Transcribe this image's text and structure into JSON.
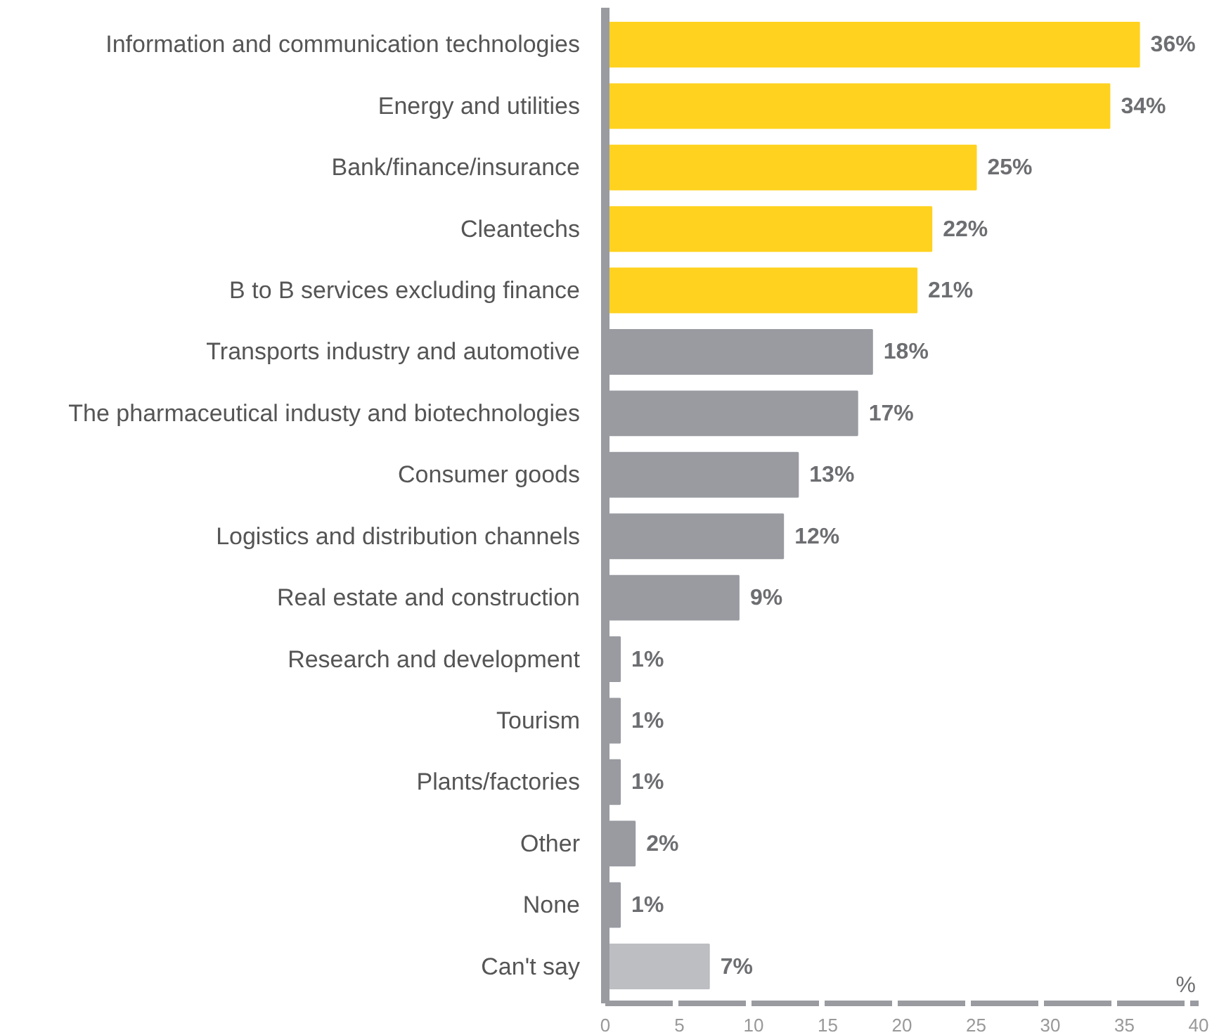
{
  "chart_data": {
    "type": "bar",
    "orientation": "horizontal",
    "xlabel": "%",
    "categories": [
      "Information and communication technologies",
      "Energy and utilities",
      "Bank/finance/insurance",
      "Cleantechs",
      "B to B services excluding finance",
      "Transports industry and automotive",
      "The pharmaceutical industy and biotechnologies",
      "Consumer goods",
      "Logistics and distribution channels",
      "Real estate and construction",
      "Research and development",
      "Tourism",
      "Plants/factories",
      "Other",
      "None",
      "Can't say"
    ],
    "values": [
      36,
      34,
      25,
      22,
      21,
      18,
      17,
      13,
      12,
      9,
      1,
      1,
      1,
      2,
      1,
      7
    ],
    "colors": [
      "#ffd21f",
      "#ffd21f",
      "#ffd21f",
      "#ffd21f",
      "#ffd21f",
      "#999ba1",
      "#999ba1",
      "#999ba1",
      "#999ba1",
      "#999ba1",
      "#999ba1",
      "#999ba1",
      "#999ba1",
      "#999ba1",
      "#999ba1",
      "#bcbec2"
    ],
    "value_labels": [
      "36%",
      "34%",
      "25%",
      "22%",
      "21%",
      "18%",
      "17%",
      "13%",
      "12%",
      "9%",
      "1%",
      "1%",
      "1%",
      "2%",
      "1%",
      "7%"
    ],
    "xlim": [
      0,
      40
    ],
    "xticks": [
      0,
      5,
      10,
      15,
      20,
      25,
      30,
      35,
      40
    ],
    "grid": false
  }
}
